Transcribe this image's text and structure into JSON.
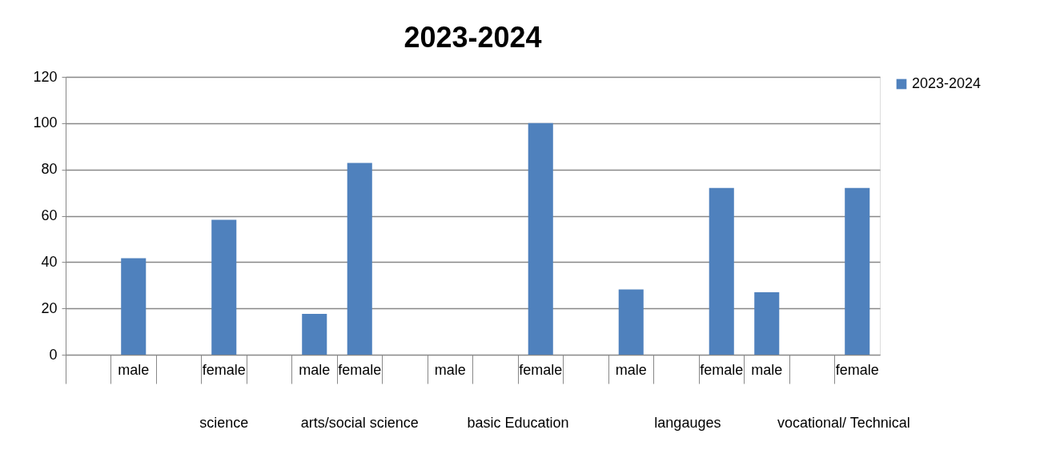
{
  "chart_data": {
    "type": "bar",
    "title": "2023-2024",
    "categories": [
      null,
      "male",
      null,
      "female",
      null,
      "male",
      "female",
      null,
      "male",
      null,
      "female",
      null,
      "male",
      null,
      "female",
      "male",
      null,
      "female"
    ],
    "series": [
      {
        "name": "2023-2024",
        "color": "#4f81bd",
        "values": [
          null,
          41.7,
          null,
          58.3,
          null,
          17.6,
          82.8,
          null,
          0,
          null,
          100,
          null,
          28.2,
          null,
          72,
          27,
          null,
          72
        ]
      }
    ],
    "ylim": [
      0,
      120
    ],
    "yticks": [
      0,
      20,
      40,
      60,
      80,
      100,
      120
    ],
    "grid": "y",
    "legend": "right",
    "annotations": [
      "science",
      "arts/social science",
      "basic Education",
      "langauges",
      "vocational/ Technical"
    ]
  }
}
